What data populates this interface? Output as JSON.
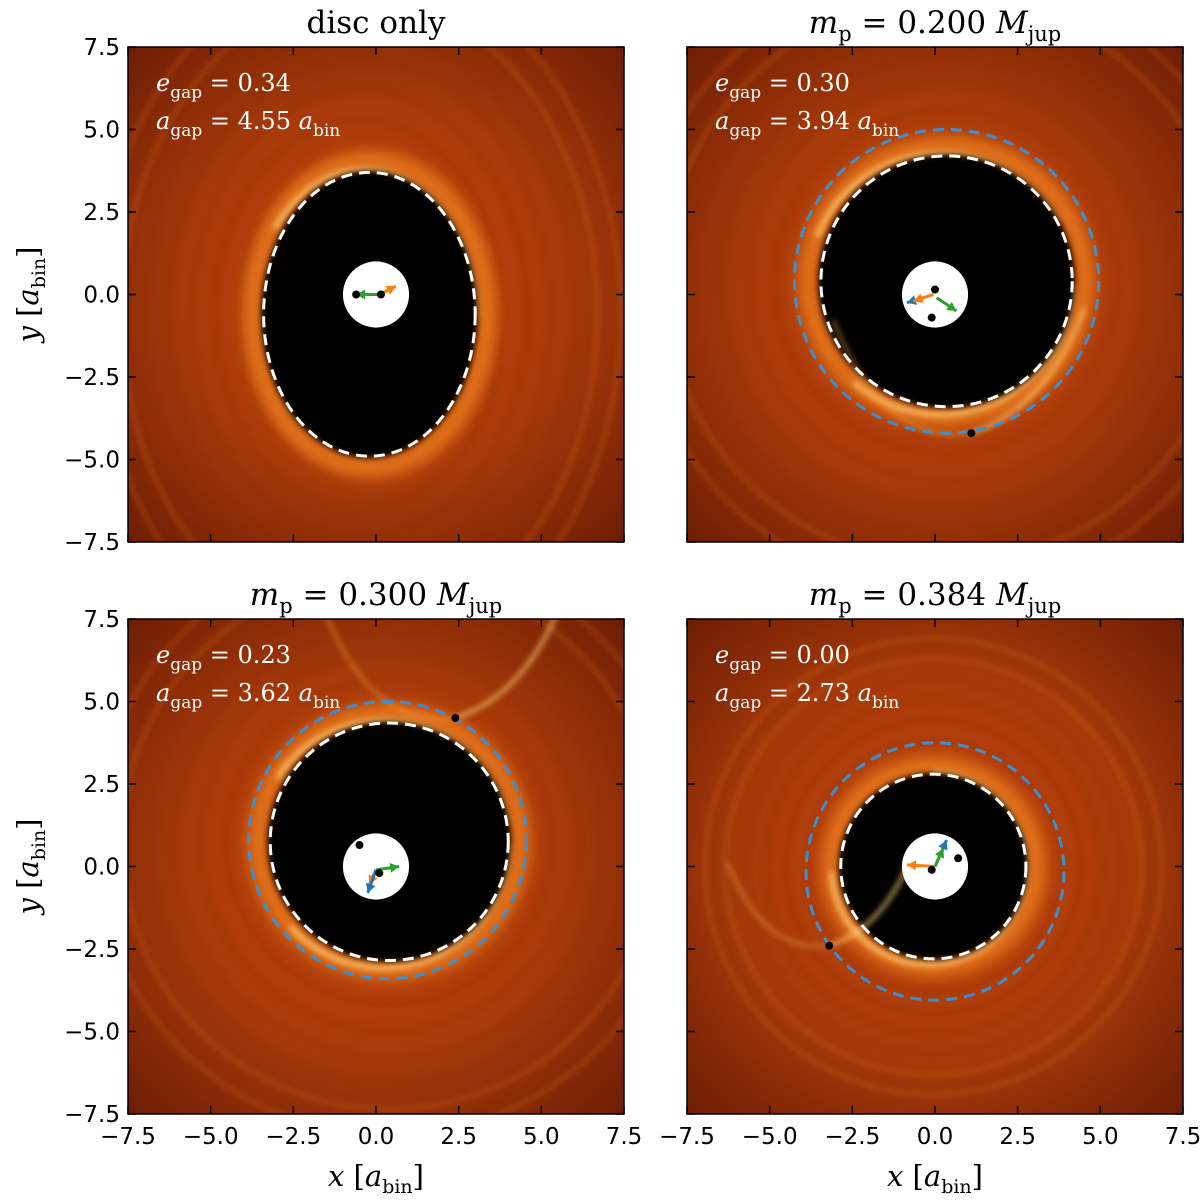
{
  "chart_data": [
    {
      "type": "heatmap",
      "title": "disc only",
      "title_parts": [],
      "annotation": {
        "e_gap_symbol": "e",
        "e_gap_sub": "gap",
        "e_gap_value": "= 0.34",
        "a_gap_symbol": "a",
        "a_gap_sub": "gap",
        "a_gap_value": "= 4.55",
        "a_gap_unit": "a",
        "a_gap_unit_sub": "bin"
      },
      "gap_ellipse": {
        "cx": -0.2,
        "cy": -0.6,
        "rx": 3.2,
        "ry": 4.3
      },
      "planet_orbit": null,
      "planet": null,
      "binary_stars": [
        [
          -0.6,
          0.0
        ],
        [
          0.15,
          0.0
        ]
      ],
      "arrows": [
        {
          "color": "#2ca02c",
          "from": [
            0.1,
            0.0
          ],
          "to": [
            -0.6,
            0.0
          ]
        },
        {
          "color": "#ff7f0e",
          "from": [
            0.1,
            0.0
          ],
          "to": [
            0.6,
            0.25
          ]
        }
      ],
      "xlim": [
        -7.5,
        7.5
      ],
      "ylim": [
        -7.5,
        7.5
      ],
      "show_xticklabels": false,
      "show_yticklabels": true
    },
    {
      "type": "heatmap",
      "title": "",
      "title_parts": [
        "m",
        "p",
        "= 0.200",
        "M",
        "jup"
      ],
      "annotation": {
        "e_gap_symbol": "e",
        "e_gap_sub": "gap",
        "e_gap_value": "= 0.30",
        "a_gap_symbol": "a",
        "a_gap_sub": "gap",
        "a_gap_value": "= 3.94",
        "a_gap_unit": "a",
        "a_gap_unit_sub": "bin"
      },
      "gap_ellipse": {
        "cx": 0.35,
        "cy": 0.4,
        "rx": 3.8,
        "ry": 3.8
      },
      "planet_orbit": {
        "cx": 0.35,
        "cy": 0.4,
        "rx": 4.6,
        "ry": 4.6
      },
      "planet": [
        1.1,
        -4.2
      ],
      "binary_stars": [
        [
          0.0,
          0.15
        ],
        [
          -0.1,
          -0.7
        ]
      ],
      "arrows": [
        {
          "color": "#2ca02c",
          "from": [
            0.05,
            -0.1
          ],
          "to": [
            0.65,
            -0.5
          ]
        },
        {
          "color": "#1f77b4",
          "from": [
            -0.05,
            0.0
          ],
          "to": [
            -0.85,
            -0.25
          ]
        },
        {
          "color": "#ff7f0e",
          "from": [
            -0.05,
            0.0
          ],
          "to": [
            -0.65,
            -0.2
          ]
        }
      ],
      "xlim": [
        -7.5,
        7.5
      ],
      "ylim": [
        -7.5,
        7.5
      ],
      "show_xticklabels": false,
      "show_yticklabels": false
    },
    {
      "type": "heatmap",
      "title": "",
      "title_parts": [
        "m",
        "p",
        "= 0.300",
        "M",
        "jup"
      ],
      "annotation": {
        "e_gap_symbol": "e",
        "e_gap_sub": "gap",
        "e_gap_value": "= 0.23",
        "a_gap_symbol": "a",
        "a_gap_sub": "gap",
        "a_gap_value": "= 3.62",
        "a_gap_unit": "a",
        "a_gap_unit_sub": "bin"
      },
      "gap_ellipse": {
        "cx": 0.4,
        "cy": 0.75,
        "rx": 3.6,
        "ry": 3.6
      },
      "planet_orbit": {
        "cx": 0.35,
        "cy": 0.8,
        "rx": 4.2,
        "ry": 4.2
      },
      "planet": [
        2.4,
        4.5
      ],
      "binary_stars": [
        [
          -0.5,
          0.65
        ],
        [
          0.1,
          -0.2
        ]
      ],
      "arrows": [
        {
          "color": "#2ca02c",
          "from": [
            0.0,
            -0.1
          ],
          "to": [
            0.7,
            0.0
          ]
        },
        {
          "color": "#ff7f0e",
          "from": [
            0.0,
            -0.1
          ],
          "to": [
            -0.2,
            -0.55
          ]
        },
        {
          "color": "#1f77b4",
          "from": [
            0.0,
            -0.1
          ],
          "to": [
            -0.25,
            -0.8
          ]
        }
      ],
      "xlim": [
        -7.5,
        7.5
      ],
      "ylim": [
        -7.5,
        7.5
      ],
      "show_xticklabels": true,
      "show_yticklabels": true
    },
    {
      "type": "heatmap",
      "title": "",
      "title_parts": [
        "m",
        "p",
        "= 0.384",
        "M",
        "jup"
      ],
      "annotation": {
        "e_gap_symbol": "e",
        "e_gap_sub": "gap",
        "e_gap_value": "= 0.00",
        "a_gap_symbol": "a",
        "a_gap_sub": "gap",
        "a_gap_value": "= 2.73",
        "a_gap_unit": "a",
        "a_gap_unit_sub": "bin"
      },
      "gap_ellipse": {
        "cx": -0.05,
        "cy": 0.0,
        "rx": 2.8,
        "ry": 2.8
      },
      "planet_orbit": {
        "cx": 0.0,
        "cy": -0.15,
        "rx": 3.9,
        "ry": 3.9
      },
      "planet": [
        -3.2,
        -2.4
      ],
      "binary_stars": [
        [
          0.7,
          0.25
        ],
        [
          -0.1,
          -0.1
        ]
      ],
      "arrows": [
        {
          "color": "#1f77b4",
          "from": [
            0.0,
            0.0
          ],
          "to": [
            0.35,
            0.8
          ]
        },
        {
          "color": "#2ca02c",
          "from": [
            0.0,
            0.0
          ],
          "to": [
            0.25,
            0.55
          ]
        },
        {
          "color": "#ff7f0e",
          "from": [
            0.0,
            0.0
          ],
          "to": [
            -0.85,
            0.05
          ]
        }
      ],
      "xlim": [
        -7.5,
        7.5
      ],
      "ylim": [
        -7.5,
        7.5
      ],
      "show_xticklabels": true,
      "show_yticklabels": false
    }
  ],
  "ticks": [
    "−7.5",
    "−5.0",
    "−2.5",
    "0.0",
    "2.5",
    "5.0",
    "7.5"
  ],
  "tick_values": [
    -7.5,
    -5.0,
    -2.5,
    0.0,
    2.5,
    5.0,
    7.5
  ],
  "xlabel": {
    "symbol": "x",
    "unit": "a",
    "unit_sub": "bin"
  },
  "ylabel": {
    "symbol": "y",
    "unit": "a",
    "unit_sub": "bin"
  },
  "colors": {
    "gap_line": "#ffffff",
    "orbit_line": "#3f8fd0",
    "planet": "#000000",
    "cmap_outer": "#a83a0a",
    "cmap_mid": "#e06a14",
    "cmap_bright": "#ffd27a",
    "cavity": "#000000"
  }
}
